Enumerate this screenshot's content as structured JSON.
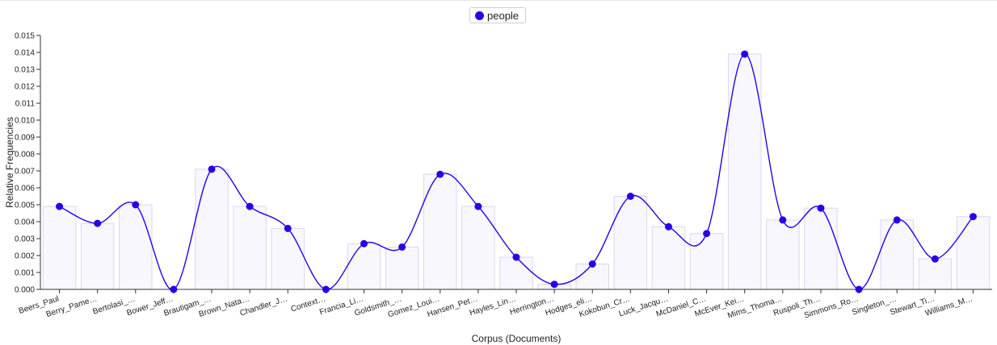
{
  "legend": {
    "label": "people"
  },
  "colors": {
    "series": "#2a00e8",
    "bar_fill": "#f7f7fd",
    "bar_stroke": "#d8d8f4",
    "axis": "#333333"
  },
  "chart_data": {
    "type": "bar",
    "overlay": "smoothed-line-with-points",
    "xlabel": "Corpus (Documents)",
    "ylabel": "Relative Frequencies",
    "ylim": [
      0,
      0.015
    ],
    "yticks": [
      "0.000",
      "0.001",
      "0.002",
      "0.003",
      "0.004",
      "0.005",
      "0.006",
      "0.007",
      "0.008",
      "0.009",
      "0.010",
      "0.011",
      "0.012",
      "0.013",
      "0.014",
      "0.015"
    ],
    "grid": false,
    "legend_position": "top-center",
    "categories": [
      "Beers_Paul",
      "Berry_Pame…",
      "Bertolasi_…",
      "Bower_Jeff…",
      "Brautigam_…",
      "Brown_Nata…",
      "Chandler_J…",
      "Context…",
      "Francia_Li…",
      "Goldsmith_…",
      "Gomez_Loui…",
      "Hansen_Pet…",
      "Hayles_Lin…",
      "Herrington…",
      "Hodges_eli…",
      "Kokobun_Cr…",
      "Luck_Jacqu…",
      "McDaniel_C…",
      "McEver_Kei…",
      "Mims_Thoma…",
      "Ruspoli_Th…",
      "Simmons_Ro…",
      "Singleton_…",
      "Stewart_Ti…",
      "Williams_M…"
    ],
    "series": [
      {
        "name": "people",
        "values": [
          0.0049,
          0.0039,
          0.005,
          0.0,
          0.0071,
          0.0049,
          0.0036,
          0.0,
          0.0027,
          0.0025,
          0.0068,
          0.0049,
          0.0019,
          0.0003,
          0.0015,
          0.0055,
          0.0037,
          0.0033,
          0.0139,
          0.0041,
          0.0048,
          0.0,
          0.0041,
          0.0018,
          0.0043
        ]
      }
    ]
  }
}
